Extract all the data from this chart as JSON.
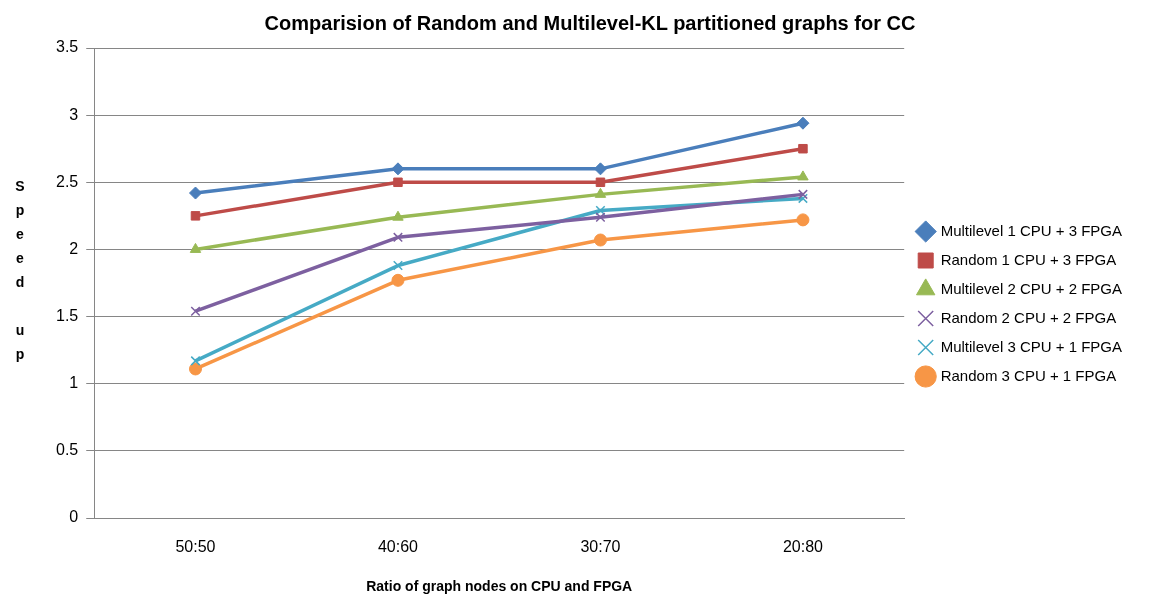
{
  "chart_data": {
    "type": "line",
    "title": "Comparision of Random and Multilevel-KL partitioned graphs for CC",
    "xlabel": "Ratio of graph nodes on CPU and FPGA",
    "ylabel": "Speed up",
    "categories": [
      "50:50",
      "40:60",
      "30:70",
      "20:80"
    ],
    "ylim": [
      0,
      3.5
    ],
    "yticks": [
      0,
      0.5,
      1,
      1.5,
      2,
      2.5,
      3,
      3.5
    ],
    "grid": "y",
    "legend": "right",
    "series": [
      {
        "name": "Multilevel 1 CPU + 3 FPGA",
        "color": "#4a7ebb",
        "marker": "diamond",
        "values": [
          2.42,
          2.6,
          2.6,
          2.94
        ]
      },
      {
        "name": "Random 1 CPU + 3 FPGA",
        "color": "#be4b48",
        "marker": "square",
        "values": [
          2.25,
          2.5,
          2.5,
          2.75
        ]
      },
      {
        "name": "Multilevel 2 CPU + 2 FPGA",
        "color": "#98b954",
        "marker": "triangle",
        "values": [
          2.0,
          2.24,
          2.41,
          2.54
        ]
      },
      {
        "name": "Random 2 CPU + 2 FPGA",
        "color": "#7d60a0",
        "marker": "cross",
        "values": [
          1.54,
          2.09,
          2.24,
          2.41
        ]
      },
      {
        "name": "Multilevel 3 CPU + 1 FPGA",
        "color": "#46aac5",
        "marker": "cross",
        "values": [
          1.17,
          1.88,
          2.29,
          2.38
        ]
      },
      {
        "name": "Random 3 CPU + 1 FPGA",
        "color": "#f79646",
        "marker": "circle",
        "values": [
          1.11,
          1.77,
          2.07,
          2.22
        ]
      }
    ]
  }
}
